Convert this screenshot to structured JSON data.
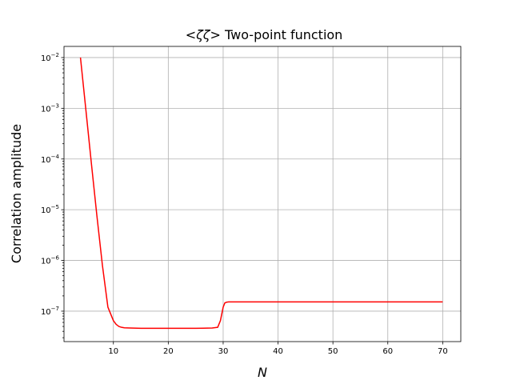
{
  "chart_data": {
    "type": "line",
    "title_math": "<ζζ>",
    "title_text": " Two-point function",
    "xlabel": "N",
    "ylabel": "Correlation amplitude",
    "xlim": [
      1,
      73.3
    ],
    "ylim_log10": [
      -7.6,
      -1.78
    ],
    "yscale": "log",
    "grid": true,
    "x_ticks": [
      10,
      20,
      30,
      40,
      50,
      60,
      70
    ],
    "x_tick_labels": [
      "10",
      "20",
      "30",
      "40",
      "50",
      "60",
      "70"
    ],
    "y_ticks_exp": [
      -7,
      -6,
      -5,
      -4,
      -3,
      -2
    ],
    "y_tick_bases": [
      "10",
      "10",
      "10",
      "10",
      "10",
      "10"
    ],
    "y_tick_exps": [
      "−7",
      "−6",
      "−5",
      "−4",
      "−3",
      "−2"
    ],
    "series": [
      {
        "color": "#ff0000",
        "x": [
          4,
          5,
          6,
          7,
          8,
          9,
          10,
          10.5,
          11,
          11.5,
          12,
          13,
          15,
          20,
          25,
          28,
          29,
          29.5,
          30,
          30.3,
          30.6,
          31,
          35,
          40,
          50,
          60,
          70
        ],
        "y": [
          0.01,
          0.0009,
          8e-05,
          7.5e-06,
          8e-07,
          1.2e-07,
          6.5e-08,
          5.5e-08,
          5e-08,
          4.8e-08,
          4.7e-08,
          4.65e-08,
          4.6e-08,
          4.6e-08,
          4.6e-08,
          4.65e-08,
          4.8e-08,
          6.5e-08,
          1.2e-07,
          1.45e-07,
          1.5e-07,
          1.52e-07,
          1.52e-07,
          1.52e-07,
          1.52e-07,
          1.52e-07,
          1.52e-07
        ]
      }
    ]
  }
}
